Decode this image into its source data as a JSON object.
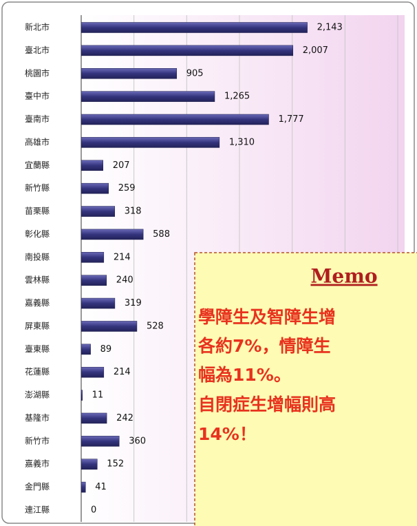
{
  "chart_data": {
    "type": "bar",
    "orientation": "horizontal",
    "categories": [
      "新北市",
      "臺北市",
      "桃園市",
      "臺中市",
      "臺南市",
      "高雄市",
      "宜蘭縣",
      "新竹縣",
      "苗栗縣",
      "彰化縣",
      "南投縣",
      "雲林縣",
      "嘉義縣",
      "屏東縣",
      "臺東縣",
      "花蓮縣",
      "澎湖縣",
      "基隆市",
      "新竹市",
      "嘉義市",
      "金門縣",
      "連江縣"
    ],
    "values": [
      2143,
      2007,
      905,
      1265,
      1777,
      1310,
      207,
      259,
      318,
      588,
      214,
      240,
      319,
      528,
      89,
      214,
      11,
      242,
      360,
      152,
      41,
      0
    ],
    "value_labels": [
      "2,143",
      "2,007",
      "905",
      "1,265",
      "1,777",
      "1,310",
      "207",
      "259",
      "318",
      "588",
      "214",
      "240",
      "319",
      "528",
      "89",
      "214",
      "11",
      "242",
      "360",
      "152",
      "41",
      "0"
    ],
    "color": "#34347e",
    "xlim": [
      0,
      3000
    ],
    "xticks": [
      0,
      500,
      1000,
      1500,
      2000,
      2500,
      3000
    ],
    "grid": true
  },
  "memo": {
    "title": "Memo",
    "lines": [
      "學障生及智障生增",
      "各約7%，情障生",
      "幅為11%。",
      "自閉症生增幅則高",
      "14%！"
    ]
  }
}
